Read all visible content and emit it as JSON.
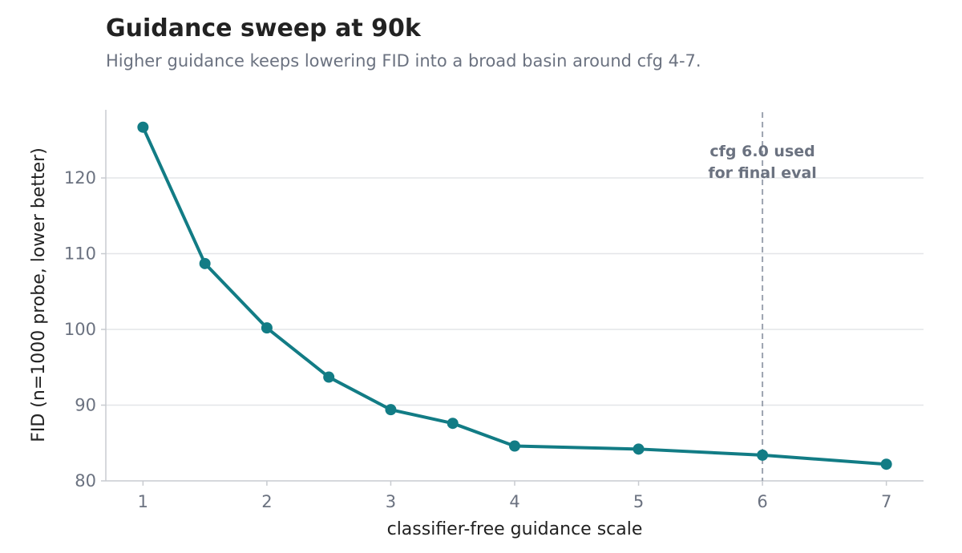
{
  "chart_data": {
    "type": "line",
    "title": "Guidance sweep at 90k",
    "subtitle": "Higher guidance keeps lowering FID into a broad basin around cfg 4-7.",
    "xlabel": "classifier-free guidance scale",
    "ylabel": "FID (n=1000 probe, lower better)",
    "xlim": [
      0.7,
      7.3
    ],
    "ylim": [
      80,
      129
    ],
    "xticks": [
      1,
      2,
      3,
      4,
      5,
      6,
      7
    ],
    "yticks": [
      80,
      90,
      100,
      110,
      120
    ],
    "grid": "horizontal",
    "series": [
      {
        "color": "#127c85",
        "x": [
          1,
          1.5,
          2,
          2.5,
          3,
          3.5,
          4,
          5,
          6,
          7
        ],
        "y": [
          126.7,
          108.7,
          100.2,
          93.7,
          89.4,
          87.6,
          84.6,
          84.2,
          83.4,
          82.2
        ]
      }
    ],
    "reference_line": {
      "x": 6,
      "style": "dashed",
      "color": "#9ca3af",
      "label_lines": [
        "cfg 6.0 used",
        "for final eval"
      ]
    }
  }
}
